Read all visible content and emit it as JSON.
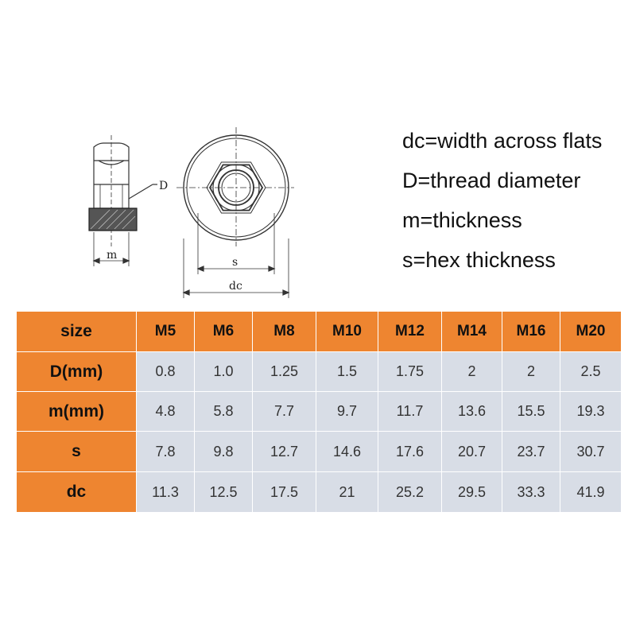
{
  "diagram": {
    "label_D": "D",
    "label_m": "m",
    "label_s": "s",
    "label_dc": "dc"
  },
  "legend": [
    "dc=width across flats",
    "D=thread diameter",
    "m=thickness",
    "s=hex thickness"
  ],
  "table": {
    "corner": "size",
    "columns": [
      "M5",
      "M6",
      "M8",
      "M10",
      "M12",
      "M14",
      "M16",
      "M20"
    ],
    "rows": [
      {
        "label": "D(mm)",
        "values": [
          "0.8",
          "1.0",
          "1.25",
          "1.5",
          "1.75",
          "2",
          "2",
          "2.5"
        ]
      },
      {
        "label": "m(mm)",
        "values": [
          "4.8",
          "5.8",
          "7.7",
          "9.7",
          "11.7",
          "13.6",
          "15.5",
          "19.3"
        ]
      },
      {
        "label": "s",
        "values": [
          "7.8",
          "9.8",
          "12.7",
          "14.6",
          "17.6",
          "20.7",
          "23.7",
          "30.7"
        ]
      },
      {
        "label": "dc",
        "values": [
          "11.3",
          "12.5",
          "17.5",
          "21",
          "25.2",
          "29.5",
          "33.3",
          "41.9"
        ]
      }
    ]
  },
  "colors": {
    "header_orange": "#ee8530",
    "cell_gray": "#d8dde6"
  }
}
